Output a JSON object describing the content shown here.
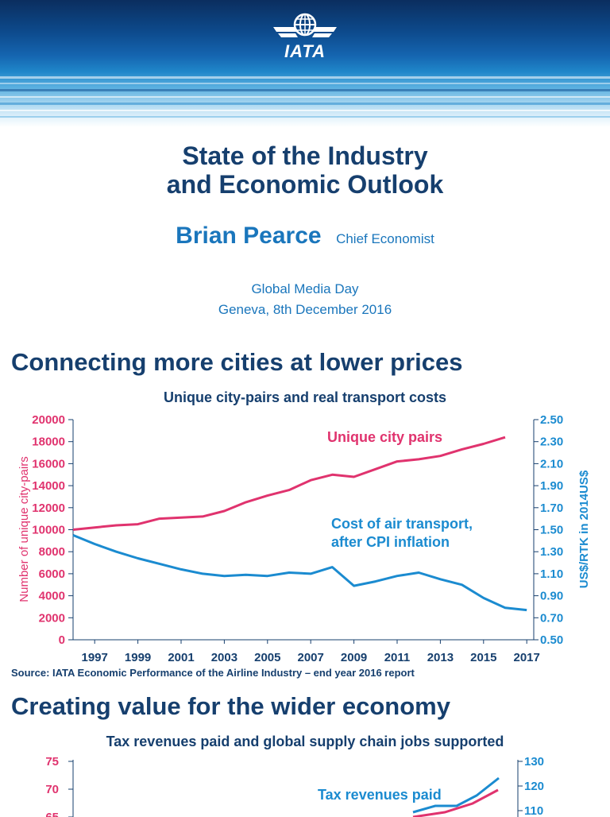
{
  "header": {
    "logo_text": "IATA"
  },
  "title": {
    "line1": "State of the Industry",
    "line2": "and Economic Outlook"
  },
  "speaker": {
    "name": "Brian Pearce",
    "role": "Chief Economist"
  },
  "event": {
    "line1": "Global Media Day",
    "line2": "Geneva, 8th December 2016"
  },
  "section1": {
    "heading": "Connecting more cities at lower prices"
  },
  "section2": {
    "heading": "Creating value for the wider economy"
  },
  "source": "Source: IATA Economic Performance of the Airline Industry – end year 2016 report",
  "colors": {
    "pink": "#e0336e",
    "blue": "#1b8bd0",
    "navy": "#163f6e"
  },
  "chart_data": [
    {
      "type": "line",
      "title": "Unique city-pairs and real transport costs",
      "x_ticks": [
        1997,
        1999,
        2001,
        2003,
        2005,
        2007,
        2009,
        2011,
        2013,
        2015,
        2017
      ],
      "xlim": [
        1997,
        2017
      ],
      "ylabel_left": "Number of unique city-pairs",
      "ylabel_right": "US$/RTK in 2014US$",
      "y_left_ticks": [
        "20000",
        "18000",
        "16000",
        "14000",
        "12000",
        "10000",
        "8000",
        "6000",
        "4000",
        "2000",
        "0"
      ],
      "y_right_ticks": [
        "2.50",
        "2.30",
        "2.10",
        "1.90",
        "1.70",
        "1.50",
        "1.30",
        "1.10",
        "0.90",
        "0.70",
        "0.50"
      ],
      "ylim_left": [
        0,
        20000
      ],
      "ylim_right": [
        0.5,
        2.5
      ],
      "series": [
        {
          "name": "Unique city pairs",
          "axis": "left",
          "x": [
            1996,
            1997,
            1998,
            1999,
            2000,
            2001,
            2002,
            2003,
            2004,
            2005,
            2006,
            2007,
            2008,
            2009,
            2010,
            2011,
            2012,
            2013,
            2014,
            2015,
            2016
          ],
          "y": [
            10000,
            10200,
            10400,
            10500,
            11000,
            11100,
            11200,
            11700,
            12500,
            13100,
            13600,
            14500,
            15000,
            14800,
            15500,
            16200,
            16400,
            16700,
            17300,
            17800,
            18400
          ]
        },
        {
          "name_line1": "Cost of air transport,",
          "name_line2": "after CPI inflation",
          "axis": "right",
          "x": [
            1996,
            1997,
            1998,
            1999,
            2000,
            2001,
            2002,
            2003,
            2004,
            2005,
            2006,
            2007,
            2008,
            2009,
            2010,
            2011,
            2012,
            2013,
            2014,
            2015,
            2016,
            2017
          ],
          "y": [
            1.45,
            1.37,
            1.3,
            1.24,
            1.19,
            1.14,
            1.1,
            1.08,
            1.09,
            1.08,
            1.11,
            1.1,
            1.16,
            0.99,
            1.03,
            1.08,
            1.11,
            1.05,
            1.0,
            0.88,
            0.79,
            0.77
          ]
        }
      ]
    },
    {
      "type": "line",
      "title": "Tax revenues paid and global supply chain jobs supported",
      "y_left_ticks": [
        "75",
        "70",
        "65"
      ],
      "y_right_ticks": [
        "130",
        "120",
        "110"
      ],
      "ylim_left": [
        0,
        75
      ],
      "ylim_right": [
        0,
        130
      ],
      "series": [
        {
          "name": "Tax revenues paid",
          "axis": "left"
        }
      ]
    }
  ]
}
